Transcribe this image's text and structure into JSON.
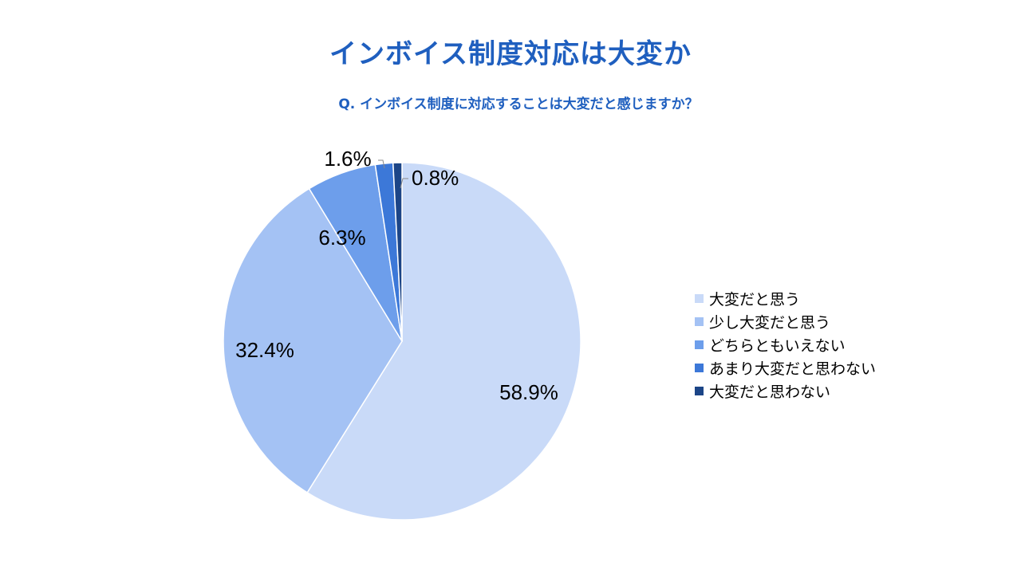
{
  "title": "インボイス制度対応は大変か",
  "subtitle": "Q. インボイス制度に対応することは大変だと感じますか？",
  "chart_data": {
    "type": "pie",
    "title": "インボイス制度対応は大変か",
    "subtitle": "Q. インボイス制度に対応することは大変だと感じますか？",
    "categories": [
      "大変だと思う",
      "少し大変だと思う",
      "どちらともいえない",
      "あまり大変だと思わない",
      "大変だと思わない"
    ],
    "values": [
      58.9,
      32.4,
      6.3,
      1.6,
      0.8
    ],
    "labels": [
      "58.9%",
      "32.4%",
      "6.3%",
      "1.6%",
      "0.8%"
    ],
    "colors": [
      "#c9daf8",
      "#a4c2f4",
      "#6d9eeb",
      "#3c78d8",
      "#1c4587"
    ],
    "start_angle": "12 o'clock",
    "direction": "clockwise",
    "legend_position": "right"
  }
}
